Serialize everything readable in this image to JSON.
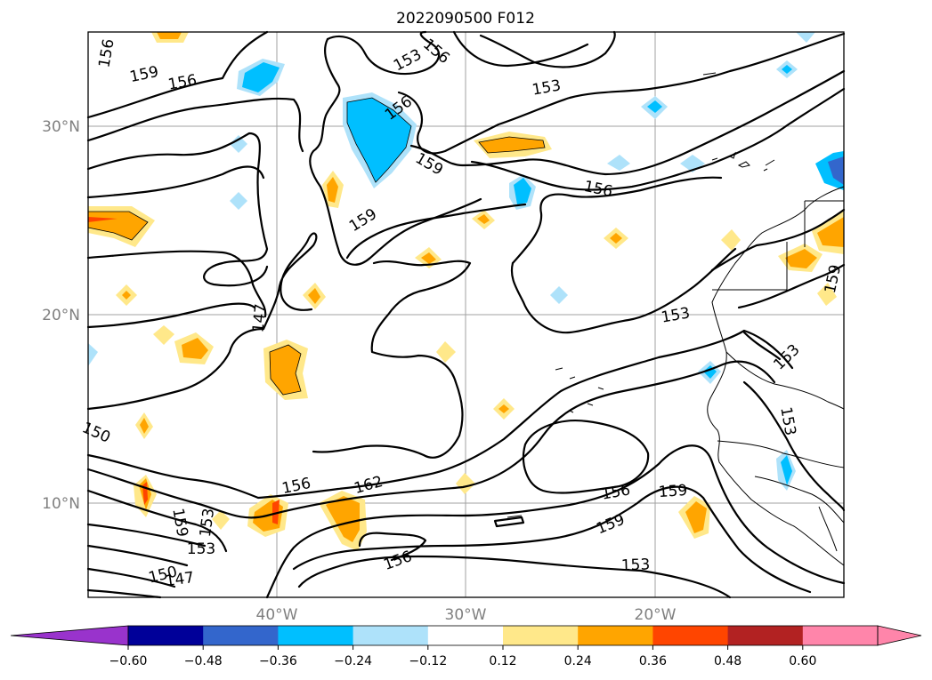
{
  "title": "2022090500 F012",
  "map": {
    "lat_ticks": [
      {
        "label": "30°N",
        "lat": 30
      },
      {
        "label": "20°N",
        "lat": 20
      },
      {
        "label": "10°N",
        "lat": 10
      }
    ],
    "lon_ticks": [
      {
        "label": "40°W",
        "lon": -40
      },
      {
        "label": "30°W",
        "lon": -30
      },
      {
        "label": "20°W",
        "lon": -20
      }
    ],
    "extent": {
      "lon_min": -50,
      "lon_max": -10,
      "lat_min": 5,
      "lat_max": 35
    },
    "gridlines": true,
    "contour_labels": [
      "156",
      "159",
      "156",
      "153",
      "156",
      "153",
      "156",
      "159",
      "156",
      "159",
      "147",
      "153",
      "156",
      "162",
      "156",
      "159",
      "159",
      "156",
      "153",
      "150",
      "147",
      "153",
      "159",
      "153",
      "153",
      "153",
      "159",
      "150"
    ]
  },
  "colorbar": {
    "colors": [
      "#9933cc",
      "#000099",
      "#3366cc",
      "#00bfff",
      "#aee2fa",
      "#ffffff",
      "#ffe88a",
      "#ffa500",
      "#ff4500",
      "#b22222",
      "#ff85aa",
      "#ff85aa"
    ],
    "tick_labels": [
      "−0.60",
      "−0.48",
      "−0.36",
      "−0.24",
      "−0.12",
      "0.12",
      "0.24",
      "0.36",
      "0.48",
      "0.60"
    ]
  }
}
